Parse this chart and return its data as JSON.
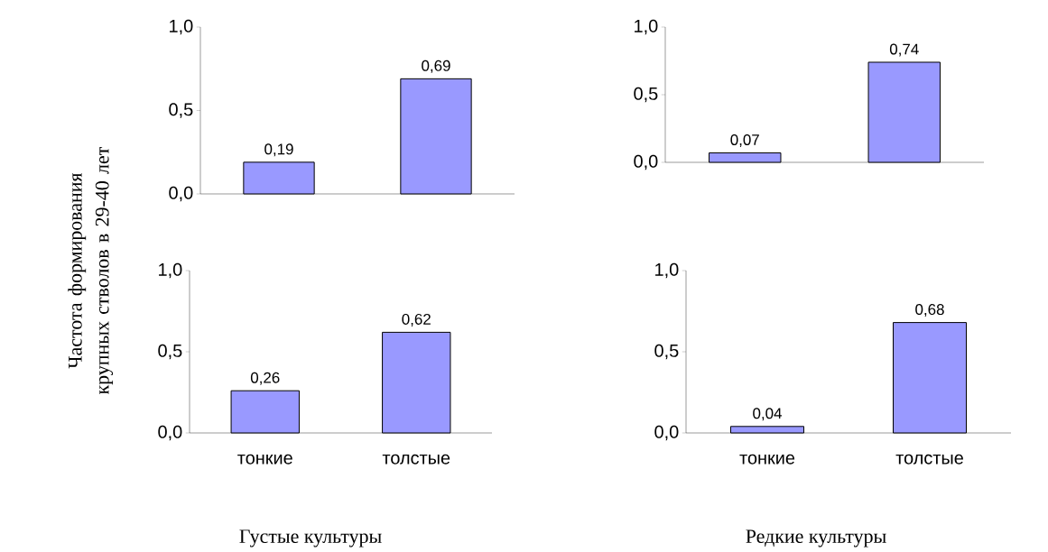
{
  "chart_data": [
    {
      "type": "bar",
      "ylabel": "Частота формирования крупных стволов в 29-40 лет",
      "categories": [
        null,
        null
      ],
      "values": [
        0.19,
        0.69
      ],
      "value_labels": [
        "0,19",
        "0,69"
      ],
      "color": "#9999ff",
      "ylim": [
        0,
        1
      ],
      "yticks": [
        {
          "value": 0,
          "label": "0,0"
        },
        {
          "value": 0.5,
          "label": "0,5"
        },
        {
          "value": 1,
          "label": "1,0"
        }
      ]
    },
    {
      "type": "bar",
      "categories": [
        null,
        null
      ],
      "values": [
        0.07,
        0.74
      ],
      "value_labels": [
        "0,07",
        "0,74"
      ],
      "color": "#9999ff",
      "ylim": [
        0,
        1
      ],
      "yticks": [
        {
          "value": 0,
          "label": "0,0"
        },
        {
          "value": 0.5,
          "label": "0,5"
        },
        {
          "value": 1,
          "label": "1,0"
        }
      ]
    },
    {
      "type": "bar",
      "xlabel": "Густые культуры",
      "categories": [
        "тонкие",
        "толстые"
      ],
      "values": [
        0.26,
        0.62
      ],
      "value_labels": [
        "0,26",
        "0,62"
      ],
      "color": "#9999ff",
      "ylim": [
        0,
        1
      ],
      "yticks": [
        {
          "value": 0,
          "label": "0,0"
        },
        {
          "value": 0.5,
          "label": "0,5"
        },
        {
          "value": 1,
          "label": "1,0"
        }
      ]
    },
    {
      "type": "bar",
      "xlabel": "Редкие культуры",
      "categories": [
        "тонкие",
        "толстые"
      ],
      "values": [
        0.04,
        0.68
      ],
      "value_labels": [
        "0,04",
        "0,68"
      ],
      "color": "#9999ff",
      "ylim": [
        0,
        1
      ],
      "yticks": [
        {
          "value": 0,
          "label": "0,0"
        },
        {
          "value": 0.5,
          "label": "0,5"
        },
        {
          "value": 1,
          "label": "1,0"
        }
      ]
    }
  ]
}
